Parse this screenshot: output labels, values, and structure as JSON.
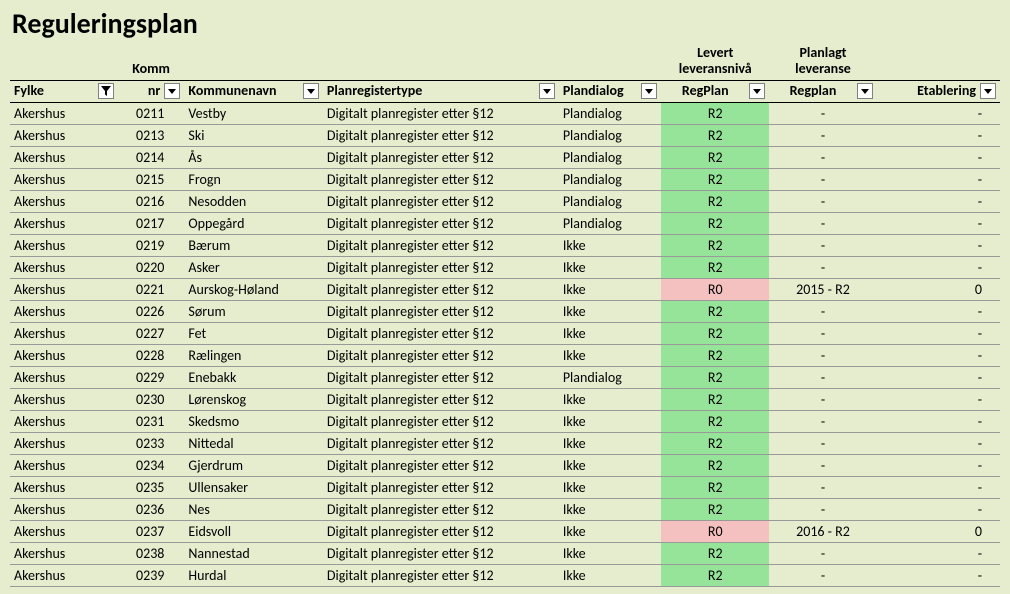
{
  "title": "Reguleringsplan",
  "colors": {
    "background": "#e5edce",
    "row_border": "#999999",
    "header_border": "#000000",
    "text": "#000000",
    "highlight_green": "#96e499",
    "highlight_red": "#f4c0c0",
    "filter_border": "#808080",
    "filter_bg": "#ffffff"
  },
  "columns": [
    {
      "key": "fylke",
      "label": "Fylke",
      "group": "",
      "align": "left",
      "filter": "active"
    },
    {
      "key": "kommnr",
      "label": "nr",
      "group": "Komm",
      "align": "right",
      "filter": "normal"
    },
    {
      "key": "kommunenavn",
      "label": "Kommunenavn",
      "group": "",
      "align": "left",
      "filter": "normal"
    },
    {
      "key": "planregtype",
      "label": "Planregistertype",
      "group": "",
      "align": "left",
      "filter": "normal"
    },
    {
      "key": "plandialog",
      "label": "Plandialog",
      "group": "",
      "align": "left",
      "filter": "normal"
    },
    {
      "key": "regplan",
      "label": "RegPlan",
      "group": "Levert leveransnivå",
      "align": "center",
      "filter": "normal"
    },
    {
      "key": "planlagt",
      "label": "Regplan",
      "group": "Planlagt leveranse",
      "align": "center",
      "filter": "normal"
    },
    {
      "key": "etablering",
      "label": "Etablering",
      "group": "",
      "align": "right",
      "filter": "normal"
    }
  ],
  "rows": [
    {
      "fylke": "Akershus",
      "kommnr": "0211",
      "kommunenavn": "Vestby",
      "planregtype": "Digitalt planregister etter §12",
      "plandialog": "Plandialog",
      "regplan": "R2",
      "regplan_hl": "green",
      "planlagt": "-",
      "etablering": "-"
    },
    {
      "fylke": "Akershus",
      "kommnr": "0213",
      "kommunenavn": "Ski",
      "planregtype": "Digitalt planregister etter §12",
      "plandialog": "Plandialog",
      "regplan": "R2",
      "regplan_hl": "green",
      "planlagt": "-",
      "etablering": "-"
    },
    {
      "fylke": "Akershus",
      "kommnr": "0214",
      "kommunenavn": "Ås",
      "planregtype": "Digitalt planregister etter §12",
      "plandialog": "Plandialog",
      "regplan": "R2",
      "regplan_hl": "green",
      "planlagt": "-",
      "etablering": "-"
    },
    {
      "fylke": "Akershus",
      "kommnr": "0215",
      "kommunenavn": "Frogn",
      "planregtype": "Digitalt planregister etter §12",
      "plandialog": "Plandialog",
      "regplan": "R2",
      "regplan_hl": "green",
      "planlagt": "-",
      "etablering": "-"
    },
    {
      "fylke": "Akershus",
      "kommnr": "0216",
      "kommunenavn": "Nesodden",
      "planregtype": "Digitalt planregister etter §12",
      "plandialog": "Plandialog",
      "regplan": "R2",
      "regplan_hl": "green",
      "planlagt": "-",
      "etablering": "-"
    },
    {
      "fylke": "Akershus",
      "kommnr": "0217",
      "kommunenavn": "Oppegård",
      "planregtype": "Digitalt planregister etter §12",
      "plandialog": "Plandialog",
      "regplan": "R2",
      "regplan_hl": "green",
      "planlagt": "-",
      "etablering": "-"
    },
    {
      "fylke": "Akershus",
      "kommnr": "0219",
      "kommunenavn": "Bærum",
      "planregtype": "Digitalt planregister etter §12",
      "plandialog": "Ikke",
      "regplan": "R2",
      "regplan_hl": "green",
      "planlagt": "-",
      "etablering": "-"
    },
    {
      "fylke": "Akershus",
      "kommnr": "0220",
      "kommunenavn": "Asker",
      "planregtype": "Digitalt planregister etter §12",
      "plandialog": "Ikke",
      "regplan": "R2",
      "regplan_hl": "green",
      "planlagt": "-",
      "etablering": "-"
    },
    {
      "fylke": "Akershus",
      "kommnr": "0221",
      "kommunenavn": "Aurskog-Høland",
      "planregtype": "Digitalt planregister etter §12",
      "plandialog": "Ikke",
      "regplan": "R0",
      "regplan_hl": "red",
      "planlagt": "2015 - R2",
      "etablering": "0"
    },
    {
      "fylke": "Akershus",
      "kommnr": "0226",
      "kommunenavn": "Sørum",
      "planregtype": "Digitalt planregister etter §12",
      "plandialog": "Ikke",
      "regplan": "R2",
      "regplan_hl": "green",
      "planlagt": "-",
      "etablering": "-"
    },
    {
      "fylke": "Akershus",
      "kommnr": "0227",
      "kommunenavn": "Fet",
      "planregtype": "Digitalt planregister etter §12",
      "plandialog": "Ikke",
      "regplan": "R2",
      "regplan_hl": "green",
      "planlagt": "-",
      "etablering": "-"
    },
    {
      "fylke": "Akershus",
      "kommnr": "0228",
      "kommunenavn": "Rælingen",
      "planregtype": "Digitalt planregister etter §12",
      "plandialog": "Ikke",
      "regplan": "R2",
      "regplan_hl": "green",
      "planlagt": "-",
      "etablering": "-"
    },
    {
      "fylke": "Akershus",
      "kommnr": "0229",
      "kommunenavn": "Enebakk",
      "planregtype": "Digitalt planregister etter §12",
      "plandialog": "Plandialog",
      "regplan": "R2",
      "regplan_hl": "green",
      "planlagt": "-",
      "etablering": "-"
    },
    {
      "fylke": "Akershus",
      "kommnr": "0230",
      "kommunenavn": "Lørenskog",
      "planregtype": "Digitalt planregister etter §12",
      "plandialog": "Ikke",
      "regplan": "R2",
      "regplan_hl": "green",
      "planlagt": "-",
      "etablering": "-"
    },
    {
      "fylke": "Akershus",
      "kommnr": "0231",
      "kommunenavn": "Skedsmo",
      "planregtype": "Digitalt planregister etter §12",
      "plandialog": "Ikke",
      "regplan": "R2",
      "regplan_hl": "green",
      "planlagt": "-",
      "etablering": "-"
    },
    {
      "fylke": "Akershus",
      "kommnr": "0233",
      "kommunenavn": "Nittedal",
      "planregtype": "Digitalt planregister etter §12",
      "plandialog": "Ikke",
      "regplan": "R2",
      "regplan_hl": "green",
      "planlagt": "-",
      "etablering": "-"
    },
    {
      "fylke": "Akershus",
      "kommnr": "0234",
      "kommunenavn": "Gjerdrum",
      "planregtype": "Digitalt planregister etter §12",
      "plandialog": "Ikke",
      "regplan": "R2",
      "regplan_hl": "green",
      "planlagt": "-",
      "etablering": "-"
    },
    {
      "fylke": "Akershus",
      "kommnr": "0235",
      "kommunenavn": "Ullensaker",
      "planregtype": "Digitalt planregister etter §12",
      "plandialog": "Ikke",
      "regplan": "R2",
      "regplan_hl": "green",
      "planlagt": "-",
      "etablering": "-"
    },
    {
      "fylke": "Akershus",
      "kommnr": "0236",
      "kommunenavn": "Nes",
      "planregtype": "Digitalt planregister etter §12",
      "plandialog": "Ikke",
      "regplan": "R2",
      "regplan_hl": "green",
      "planlagt": "-",
      "etablering": "-"
    },
    {
      "fylke": "Akershus",
      "kommnr": "0237",
      "kommunenavn": "Eidsvoll",
      "planregtype": "Digitalt planregister etter §12",
      "plandialog": "Ikke",
      "regplan": "R0",
      "regplan_hl": "red",
      "planlagt": "2016 - R2",
      "etablering": "0"
    },
    {
      "fylke": "Akershus",
      "kommnr": "0238",
      "kommunenavn": "Nannestad",
      "planregtype": "Digitalt planregister etter §12",
      "plandialog": "Ikke",
      "regplan": "R2",
      "regplan_hl": "green",
      "planlagt": "-",
      "etablering": "-"
    },
    {
      "fylke": "Akershus",
      "kommnr": "0239",
      "kommunenavn": "Hurdal",
      "planregtype": "Digitalt planregister etter §12",
      "plandialog": "Ikke",
      "regplan": "R2",
      "regplan_hl": "green",
      "planlagt": "-",
      "etablering": "-"
    }
  ]
}
